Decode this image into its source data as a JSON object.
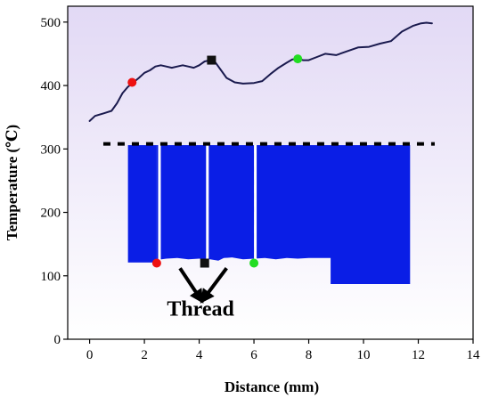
{
  "chart_data": {
    "type": "line",
    "xlabel": "Distance (mm)",
    "ylabel": "Temperature (℃)",
    "xlim": [
      -0.8,
      14
    ],
    "ylim": [
      0,
      525
    ],
    "xticks": [
      0,
      2,
      4,
      6,
      8,
      10,
      12,
      14
    ],
    "yticks": [
      0,
      100,
      200,
      300,
      400,
      500
    ],
    "xtick_labels": [
      "0",
      "2",
      "4",
      "6",
      "8",
      "10",
      "12",
      "14"
    ],
    "ytick_labels": [
      "0",
      "100",
      "200",
      "300",
      "400",
      "500"
    ],
    "grid": false,
    "background_gradient": [
      "#e2d9f5",
      "#ffffff"
    ],
    "line_color": "#1a1a4e",
    "series": [
      {
        "x": [
          0.0,
          0.2,
          0.5,
          0.8,
          1.0,
          1.2,
          1.4,
          1.6,
          1.8,
          2.0,
          2.2,
          2.4,
          2.6,
          2.8,
          3.0,
          3.2,
          3.4,
          3.6,
          3.8,
          4.0,
          4.2,
          4.4,
          4.6,
          4.8,
          5.0,
          5.3,
          5.6,
          6.0,
          6.3,
          6.6,
          6.9,
          7.2,
          7.4,
          7.6,
          7.8,
          8.0,
          8.3,
          8.6,
          9.0,
          9.4,
          9.8,
          10.2,
          10.6,
          11.0,
          11.4,
          11.8,
          12.1,
          12.3,
          12.5
        ],
        "y": [
          344,
          352,
          356,
          360,
          372,
          388,
          398,
          405,
          412,
          420,
          424,
          430,
          432,
          430,
          428,
          430,
          432,
          430,
          428,
          432,
          438,
          440,
          436,
          424,
          412,
          405,
          403,
          404,
          407,
          418,
          428,
          436,
          441,
          442,
          440,
          440,
          445,
          450,
          448,
          454,
          460,
          461,
          466,
          470,
          485,
          494,
          498,
          499,
          498
        ]
      }
    ],
    "markers": [
      {
        "x": 1.55,
        "y": 405,
        "shape": "circle",
        "color": "#ee1111"
      },
      {
        "x": 4.45,
        "y": 440,
        "shape": "square",
        "color": "#111111"
      },
      {
        "x": 7.6,
        "y": 442,
        "shape": "circle",
        "color": "#22dd22"
      }
    ],
    "bottom_markers": [
      {
        "x": 2.45,
        "y": 120,
        "shape": "circle",
        "color": "#ee1111"
      },
      {
        "x": 4.2,
        "y": 120,
        "shape": "square",
        "color": "#111111"
      },
      {
        "x": 6.0,
        "y": 120,
        "shape": "circle",
        "color": "#22dd22"
      }
    ],
    "hline": {
      "y": 308,
      "xmin": 0.5,
      "xmax": 12.6,
      "style": "dashed"
    },
    "region": {
      "color": "#0a1ee6",
      "top": 306,
      "outline": [
        [
          2.45,
          306
        ],
        [
          2.45,
          125
        ],
        [
          2.8,
          127
        ],
        [
          3.2,
          128
        ],
        [
          3.6,
          126
        ],
        [
          4.0,
          127
        ],
        [
          4.4,
          126
        ],
        [
          4.7,
          124
        ],
        [
          4.9,
          128
        ],
        [
          5.2,
          129
        ],
        [
          5.6,
          126
        ],
        [
          6.0,
          127
        ],
        [
          6.4,
          128
        ],
        [
          6.8,
          126
        ],
        [
          7.2,
          128
        ],
        [
          7.6,
          127
        ],
        [
          8.0,
          128
        ],
        [
          8.8,
          128
        ],
        [
          8.8,
          87
        ],
        [
          11.7,
          87
        ],
        [
          11.7,
          306
        ]
      ],
      "left_block": {
        "x0": 1.4,
        "x1": 2.45,
        "y0": 121,
        "y1": 306
      },
      "gaps_x": [
        2.55,
        4.3,
        6.05
      ]
    },
    "dashed_verticals": [
      {
        "x": 2.55,
        "y0": 120,
        "y1": 306
      },
      {
        "x": 4.3,
        "y0": 120,
        "y1": 306
      },
      {
        "x": 6.05,
        "y0": 120,
        "y1": 306
      }
    ],
    "annotation": {
      "text": "Thread",
      "text_x": 4.05,
      "text_y": 37,
      "arrows": [
        {
          "from": [
            3.3,
            112
          ],
          "to": [
            4.1,
            60
          ]
        },
        {
          "from": [
            5.0,
            112
          ],
          "to": [
            4.1,
            60
          ]
        }
      ]
    }
  }
}
